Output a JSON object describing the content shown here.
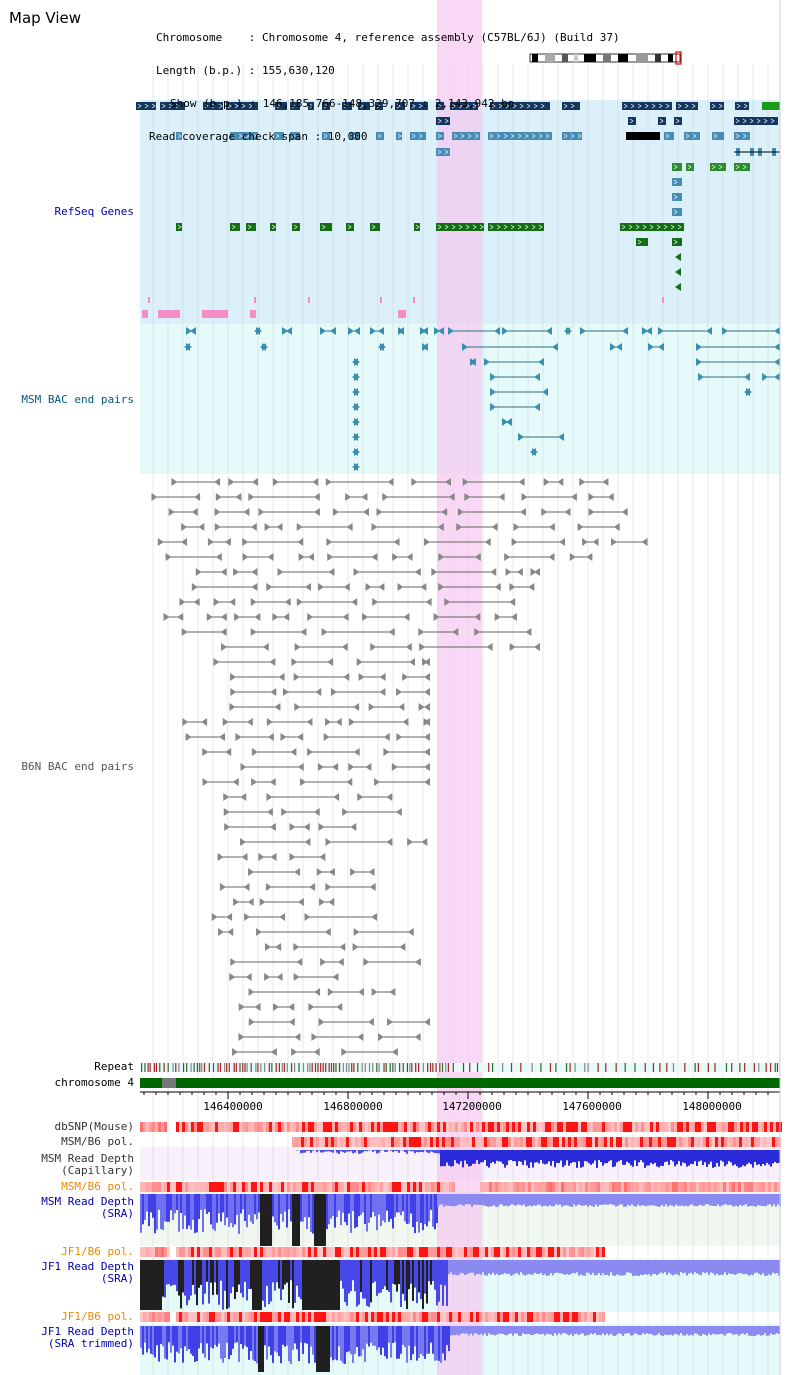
{
  "page": {
    "title": "Map View"
  },
  "header": {
    "chromosome": "Chromosome    : Chromosome 4, reference assembly (C57BL/6J) (Build 37)",
    "length": "Length (b.p.) : 155,630,120",
    "show": "Show (b.p.) : 146,185,766-148,329,707 : 2,143,942 bp",
    "coverage": "Read coverage check span : 10,000"
  },
  "tracks": {
    "refseq": "RefSeq Genes",
    "msm_bac": "MSM BAC end pairs",
    "b6n_bac": "B6N BAC end pairs",
    "repeat": "Repeat",
    "chrom": "chromosome 4",
    "dbsnp": "dbSNP(Mouse)",
    "msm_b6_pol": "MSM/B6 pol.",
    "msm_depth_cap": [
      "MSM Read Depth",
      "(Capillary)"
    ],
    "msm_b6_pol2": "MSM/B6 pol.",
    "msm_depth_sra": [
      "MSM Read Depth",
      "(SRA)"
    ],
    "jf1_b6_pol": "JF1/B6 pol.",
    "jf1_depth_sra": [
      "JF1 Read Depth",
      "(SRA)"
    ],
    "jf1_b6_pol2": "JF1/B6 pol.",
    "jf1_depth_trim": [
      "JF1 Read Depth",
      "(SRA trimmed)"
    ]
  },
  "axis": {
    "ticks": [
      "146400000",
      "146800000",
      "147200000",
      "147600000",
      "148000000"
    ]
  },
  "colors": {
    "refseq_bg": "#dcf0fa",
    "bac_bg": "#e6fafa",
    "highlight": "#f5d2f5",
    "gene_navy": "#14375f",
    "gene_blue": "#468cb4",
    "gene_green": "#146e14",
    "chrom_green": "#006600",
    "depth_blue": "#5050f0",
    "depth_black": "#202020",
    "label_blue": "#0000aa",
    "label_orange": "#ee8800",
    "label_teal": "#005a78"
  }
}
